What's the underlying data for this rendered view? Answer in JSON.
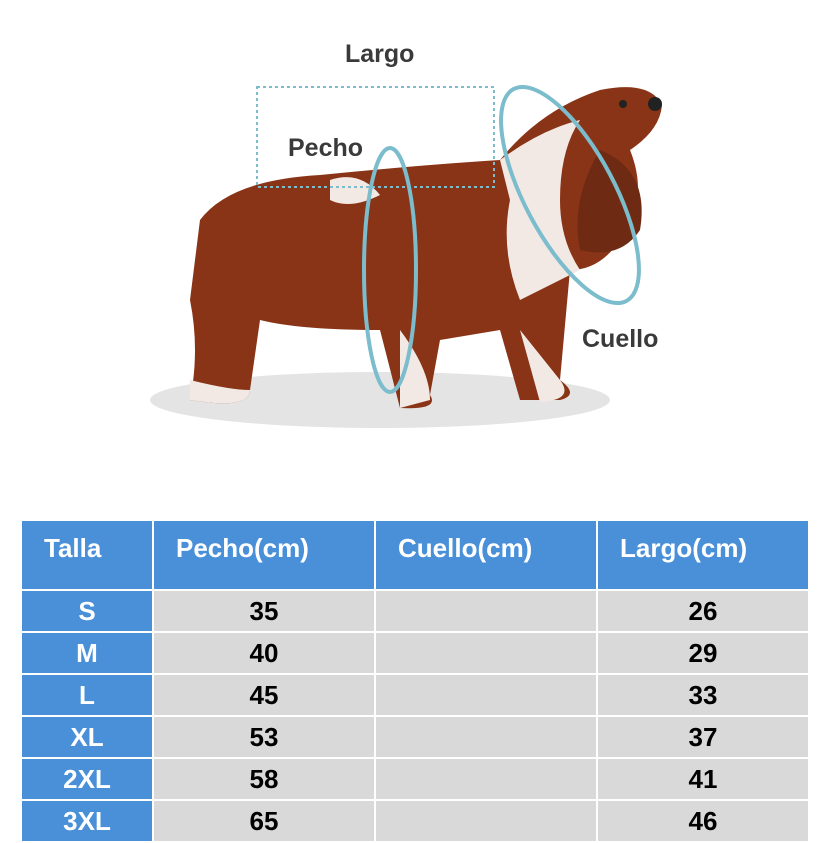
{
  "labels": {
    "largo": "Largo",
    "pecho": "Pecho",
    "cuello": "Cuello"
  },
  "colors": {
    "header": "#4a90d9",
    "cell": "#d9d9d9",
    "measure_line": "#7bbccd"
  },
  "table": {
    "headers": [
      "Talla",
      "Pecho(cm)",
      "Cuello(cm)",
      "Largo(cm)"
    ],
    "rows": [
      [
        "S",
        "35",
        "",
        "26"
      ],
      [
        "M",
        "40",
        "",
        "29"
      ],
      [
        "L",
        "45",
        "",
        "33"
      ],
      [
        "XL",
        "53",
        "",
        "37"
      ],
      [
        "2XL",
        "58",
        "",
        "41"
      ],
      [
        "3XL",
        "65",
        "",
        "46"
      ]
    ]
  }
}
